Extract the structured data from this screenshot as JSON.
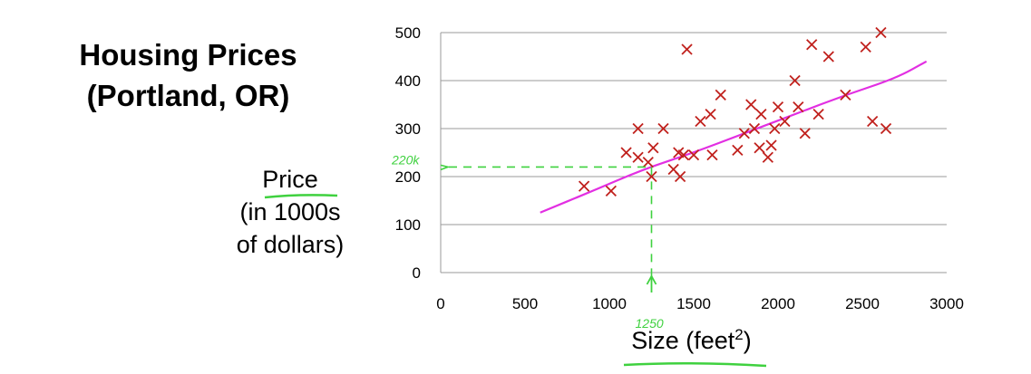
{
  "chart_data": {
    "type": "scatter",
    "title_line1": "Housing Prices",
    "title_line2": "(Portland, OR)",
    "ylabel_line1": "Price",
    "ylabel_line2": "(in 1000s",
    "ylabel_line3": "of dollars)",
    "xlabel_text": "Size (feet",
    "xlabel_sup": "2",
    "xlabel_close": ")",
    "xlim": [
      0,
      3000
    ],
    "ylim": [
      0,
      500
    ],
    "x_ticks": [
      0,
      500,
      1000,
      1500,
      2000,
      2500,
      3000
    ],
    "y_ticks": [
      0,
      100,
      200,
      300,
      400,
      500
    ],
    "grid": "horizontal",
    "series": [
      {
        "marker": "x",
        "color": "#c0201c",
        "points": [
          [
            850,
            180
          ],
          [
            1010,
            170
          ],
          [
            1100,
            250
          ],
          [
            1170,
            300
          ],
          [
            1170,
            240
          ],
          [
            1230,
            230
          ],
          [
            1250,
            200
          ],
          [
            1260,
            260
          ],
          [
            1320,
            300
          ],
          [
            1380,
            215
          ],
          [
            1410,
            250
          ],
          [
            1420,
            200
          ],
          [
            1440,
            245
          ],
          [
            1460,
            465
          ],
          [
            1500,
            245
          ],
          [
            1540,
            315
          ],
          [
            1600,
            330
          ],
          [
            1610,
            245
          ],
          [
            1660,
            370
          ],
          [
            1760,
            255
          ],
          [
            1800,
            290
          ],
          [
            1840,
            350
          ],
          [
            1860,
            300
          ],
          [
            1890,
            260
          ],
          [
            1900,
            330
          ],
          [
            1940,
            240
          ],
          [
            1960,
            265
          ],
          [
            1980,
            300
          ],
          [
            2000,
            345
          ],
          [
            2040,
            315
          ],
          [
            2100,
            400
          ],
          [
            2120,
            345
          ],
          [
            2160,
            290
          ],
          [
            2200,
            475
          ],
          [
            2240,
            330
          ],
          [
            2300,
            450
          ],
          [
            2400,
            370
          ],
          [
            2520,
            470
          ],
          [
            2560,
            315
          ],
          [
            2610,
            500
          ],
          [
            2640,
            300
          ]
        ]
      },
      {
        "type": "line",
        "color": "#e22fe2",
        "points": [
          [
            590,
            125
          ],
          [
            900,
            170
          ],
          [
            1200,
            215
          ],
          [
            1500,
            250
          ],
          [
            1800,
            290
          ],
          [
            2100,
            330
          ],
          [
            2400,
            370
          ],
          [
            2700,
            405
          ],
          [
            2880,
            440
          ]
        ]
      }
    ],
    "annotations": {
      "price_label": "220k",
      "size_label": "1250",
      "query_x": 1250,
      "query_y": 220,
      "color": "#3fd13f"
    }
  }
}
